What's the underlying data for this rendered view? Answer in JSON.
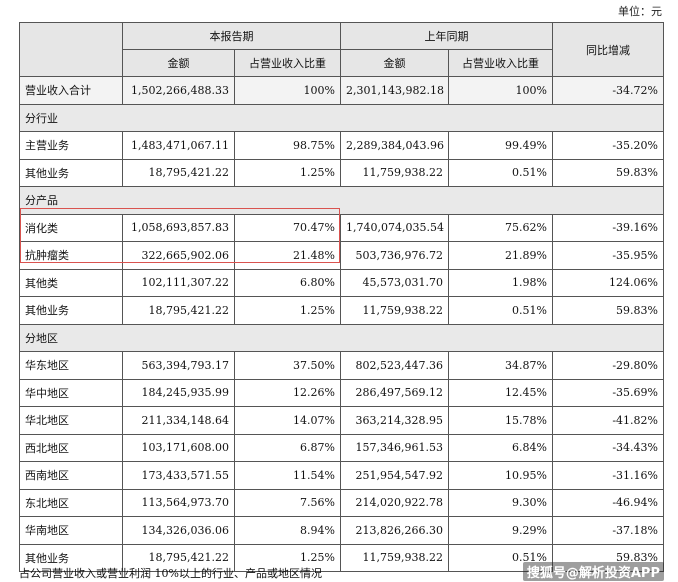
{
  "unit_label": "单位：元",
  "headers": {
    "current_period": "本报告期",
    "prior_period": "上年同期",
    "yoy": "同比增减",
    "amount": "金额",
    "ratio": "占营业收入比重"
  },
  "total_row": {
    "label": "营业收入合计",
    "cur_amount": "1,502,266,488.33",
    "cur_ratio": "100%",
    "prev_amount": "2,301,143,982.18",
    "prev_ratio": "100%",
    "yoy": "-34.72%"
  },
  "sections": [
    {
      "title": "分行业",
      "rows": [
        {
          "label": "主营业务",
          "cur_amount": "1,483,471,067.11",
          "cur_ratio": "98.75%",
          "prev_amount": "2,289,384,043.96",
          "prev_ratio": "99.49%",
          "yoy": "-35.20%"
        },
        {
          "label": "其他业务",
          "cur_amount": "18,795,421.22",
          "cur_ratio": "1.25%",
          "prev_amount": "11,759,938.22",
          "prev_ratio": "0.51%",
          "yoy": "59.83%"
        }
      ]
    },
    {
      "title": "分产品",
      "rows": [
        {
          "label": "消化类",
          "cur_amount": "1,058,693,857.83",
          "cur_ratio": "70.47%",
          "prev_amount": "1,740,074,035.54",
          "prev_ratio": "75.62%",
          "yoy": "-39.16%"
        },
        {
          "label": "抗肿瘤类",
          "cur_amount": "322,665,902.06",
          "cur_ratio": "21.48%",
          "prev_amount": "503,736,976.72",
          "prev_ratio": "21.89%",
          "yoy": "-35.95%"
        },
        {
          "label": "其他类",
          "cur_amount": "102,111,307.22",
          "cur_ratio": "6.80%",
          "prev_amount": "45,573,031.70",
          "prev_ratio": "1.98%",
          "yoy": "124.06%"
        },
        {
          "label": "其他业务",
          "cur_amount": "18,795,421.22",
          "cur_ratio": "1.25%",
          "prev_amount": "11,759,938.22",
          "prev_ratio": "0.51%",
          "yoy": "59.83%"
        }
      ]
    },
    {
      "title": "分地区",
      "rows": [
        {
          "label": "华东地区",
          "cur_amount": "563,394,793.17",
          "cur_ratio": "37.50%",
          "prev_amount": "802,523,447.36",
          "prev_ratio": "34.87%",
          "yoy": "-29.80%"
        },
        {
          "label": "华中地区",
          "cur_amount": "184,245,935.99",
          "cur_ratio": "12.26%",
          "prev_amount": "286,497,569.12",
          "prev_ratio": "12.45%",
          "yoy": "-35.69%"
        },
        {
          "label": "华北地区",
          "cur_amount": "211,334,148.64",
          "cur_ratio": "14.07%",
          "prev_amount": "363,214,328.95",
          "prev_ratio": "15.78%",
          "yoy": "-41.82%"
        },
        {
          "label": "西北地区",
          "cur_amount": "103,171,608.00",
          "cur_ratio": "6.87%",
          "prev_amount": "157,346,961.53",
          "prev_ratio": "6.84%",
          "yoy": "-34.43%"
        },
        {
          "label": "西南地区",
          "cur_amount": "173,433,571.55",
          "cur_ratio": "11.54%",
          "prev_amount": "251,954,547.92",
          "prev_ratio": "10.95%",
          "yoy": "-31.16%"
        },
        {
          "label": "东北地区",
          "cur_amount": "113,564,973.70",
          "cur_ratio": "7.56%",
          "prev_amount": "214,020,922.78",
          "prev_ratio": "9.30%",
          "yoy": "-46.94%"
        },
        {
          "label": "华南地区",
          "cur_amount": "134,326,036.06",
          "cur_ratio": "8.94%",
          "prev_amount": "213,826,266.30",
          "prev_ratio": "9.29%",
          "yoy": "-37.18%"
        },
        {
          "label": "其他业务",
          "cur_amount": "18,795,421.22",
          "cur_ratio": "1.25%",
          "prev_amount": "11,759,938.22",
          "prev_ratio": "0.51%",
          "yoy": "59.83%"
        }
      ]
    }
  ],
  "footnote": "占公司营业收入或营业利润 10%以上的行业、产品或地区情况",
  "watermark": "搜狐号@解析投资APP",
  "highlight_color": "#d9534f"
}
